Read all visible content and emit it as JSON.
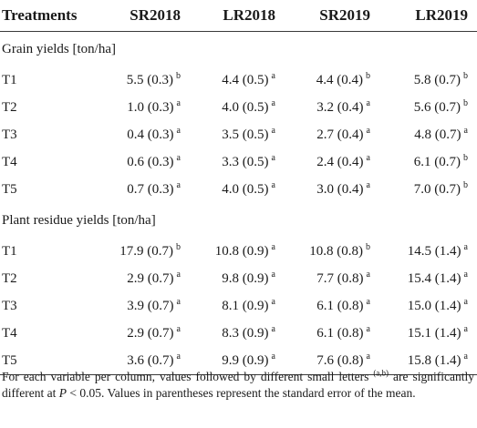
{
  "table": {
    "headers": [
      "Treatments",
      "SR2018",
      "LR2018",
      "SR2019",
      "LR2019"
    ],
    "sections": [
      {
        "title": "Grain yields [ton/ha]",
        "rows": [
          {
            "label": "T1",
            "cells": [
              {
                "value": "5.5 (0.3)",
                "letter": "b"
              },
              {
                "value": "4.4 (0.5)",
                "letter": "a"
              },
              {
                "value": "4.4 (0.4)",
                "letter": "b"
              },
              {
                "value": "5.8 (0.7)",
                "letter": "b"
              }
            ]
          },
          {
            "label": "T2",
            "cells": [
              {
                "value": "1.0 (0.3)",
                "letter": "a"
              },
              {
                "value": "4.0 (0.5)",
                "letter": "a"
              },
              {
                "value": "3.2 (0.4)",
                "letter": "a"
              },
              {
                "value": "5.6 (0.7)",
                "letter": "b"
              }
            ]
          },
          {
            "label": "T3",
            "cells": [
              {
                "value": "0.4 (0.3)",
                "letter": "a"
              },
              {
                "value": "3.5 (0.5)",
                "letter": "a"
              },
              {
                "value": "2.7 (0.4)",
                "letter": "a"
              },
              {
                "value": "4.8 (0.7)",
                "letter": "a"
              }
            ]
          },
          {
            "label": "T4",
            "cells": [
              {
                "value": "0.6 (0.3)",
                "letter": "a"
              },
              {
                "value": "3.3 (0.5)",
                "letter": "a"
              },
              {
                "value": "2.4 (0.4)",
                "letter": "a"
              },
              {
                "value": "6.1 (0.7)",
                "letter": "b"
              }
            ]
          },
          {
            "label": "T5",
            "cells": [
              {
                "value": "0.7 (0.3)",
                "letter": "a"
              },
              {
                "value": "4.0 (0.5)",
                "letter": "a"
              },
              {
                "value": "3.0 (0.4)",
                "letter": "a"
              },
              {
                "value": "7.0 (0.7)",
                "letter": "b"
              }
            ]
          }
        ]
      },
      {
        "title": "Plant residue yields [ton/ha]",
        "rows": [
          {
            "label": "T1",
            "cells": [
              {
                "value": "17.9 (0.7)",
                "letter": "b"
              },
              {
                "value": "10.8 (0.9)",
                "letter": "a"
              },
              {
                "value": "10.8 (0.8)",
                "letter": "b"
              },
              {
                "value": "14.5 (1.4)",
                "letter": "a"
              }
            ]
          },
          {
            "label": "T2",
            "cells": [
              {
                "value": "2.9 (0.7)",
                "letter": "a"
              },
              {
                "value": "9.8 (0.9)",
                "letter": "a"
              },
              {
                "value": "7.7 (0.8)",
                "letter": "a"
              },
              {
                "value": "15.4 (1.4)",
                "letter": "a"
              }
            ]
          },
          {
            "label": "T3",
            "cells": [
              {
                "value": "3.9 (0.7)",
                "letter": "a"
              },
              {
                "value": "8.1 (0.9)",
                "letter": "a"
              },
              {
                "value": "6.1 (0.8)",
                "letter": "a"
              },
              {
                "value": "15.0 (1.4)",
                "letter": "a"
              }
            ]
          },
          {
            "label": "T4",
            "cells": [
              {
                "value": "2.9 (0.7)",
                "letter": "a"
              },
              {
                "value": "8.3 (0.9)",
                "letter": "a"
              },
              {
                "value": "6.1 (0.8)",
                "letter": "a"
              },
              {
                "value": "15.1 (1.4)",
                "letter": "a"
              }
            ]
          },
          {
            "label": "T5",
            "cells": [
              {
                "value": "3.6 (0.7)",
                "letter": "a"
              },
              {
                "value": "9.9 (0.9)",
                "letter": "a"
              },
              {
                "value": "7.6 (0.8)",
                "letter": "a"
              },
              {
                "value": "15.8 (1.4)",
                "letter": "a"
              }
            ]
          }
        ]
      }
    ]
  },
  "footnote": {
    "part1": "For each variable per column, values followed by different small letters ",
    "sup": "(a,b)",
    "part2": " are significantly different at ",
    "p_symbol": "P",
    "part3": " < 0.05. Values in parentheses represent the standard error of the mean."
  }
}
